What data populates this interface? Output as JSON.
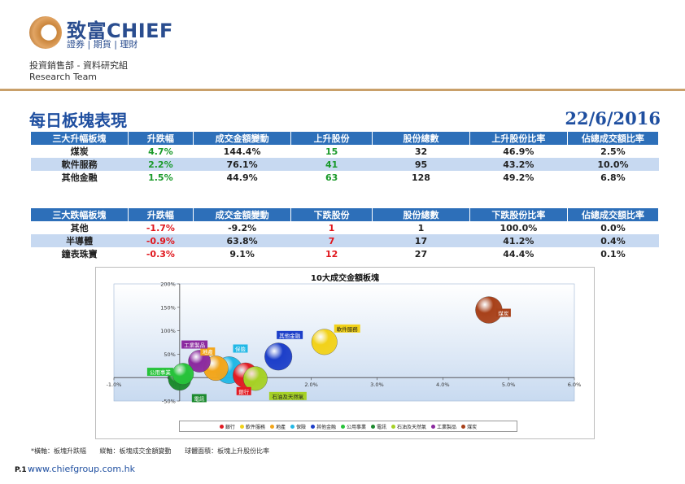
{
  "header": {
    "logo_name": "致富CHIEF",
    "logo_tagline": "證券 | 期貨 | 理財",
    "dept_line1": "投資銷售部 - 資料研究組",
    "dept_line2": "Research Team"
  },
  "title": "每日板塊表現",
  "date": "22/6/2016",
  "gainers": {
    "headers": [
      "三大升幅板塊",
      "升跌幅",
      "成交金額變動",
      "上升股份",
      "股份總數",
      "上升股份比率",
      "佔總成交額比率"
    ],
    "rows": [
      [
        "煤炭",
        "4.7%",
        "144.4%",
        "15",
        "32",
        "46.9%",
        "2.5%"
      ],
      [
        "軟件服務",
        "2.2%",
        "76.1%",
        "41",
        "95",
        "43.2%",
        "10.0%"
      ],
      [
        "其他金融",
        "1.5%",
        "44.9%",
        "63",
        "128",
        "49.2%",
        "6.8%"
      ]
    ]
  },
  "losers": {
    "headers": [
      "三大跌幅板塊",
      "升跌幅",
      "成交金額變動",
      "下跌股份",
      "股份總數",
      "下跌股份比率",
      "佔總成交額比率"
    ],
    "rows": [
      [
        "其他",
        "-1.7%",
        "-9.2%",
        "1",
        "1",
        "100.0%",
        "0.0%"
      ],
      [
        "半導體",
        "-0.9%",
        "63.8%",
        "7",
        "17",
        "41.2%",
        "0.4%"
      ],
      [
        "鐘表珠寶",
        "-0.3%",
        "9.1%",
        "12",
        "27",
        "44.4%",
        "0.1%"
      ]
    ]
  },
  "colors": {
    "header_blue": "#2d6fb9",
    "row_alt": "#c7d9f1",
    "up_green": "#1a9a2a",
    "down_red": "#e0161c",
    "accent_rule": "#c9a06a"
  },
  "chart_data": {
    "type": "bubble",
    "title": "10大成交金額板塊",
    "xlim": [
      -1.0,
      6.0
    ],
    "ylim": [
      -50,
      200
    ],
    "x_ticks": [
      "-1.0%",
      "0.0%",
      "1.0%",
      "2.0%",
      "3.0%",
      "4.0%",
      "5.0%",
      "6.0%"
    ],
    "x_tick_values": [
      -1,
      0,
      1,
      2,
      3,
      4,
      5,
      6
    ],
    "y_ticks": [
      "-50%",
      "0%",
      "50%",
      "100%",
      "150%",
      "200%"
    ],
    "y_tick_values": [
      -50,
      0,
      50,
      100,
      150,
      200
    ],
    "grid": false,
    "legend_position": "bottom",
    "series": [
      {
        "name": "銀行",
        "x": 1.0,
        "y": 5,
        "size": 41,
        "color": "#e31b23",
        "label_color": "#e31b23"
      },
      {
        "name": "軟件服務",
        "x": 2.2,
        "y": 76.1,
        "size": 43.2,
        "color": "#f2d21a",
        "label_color": "#f2d21a"
      },
      {
        "name": "地產",
        "x": 0.55,
        "y": 20,
        "size": 40,
        "color": "#f3a61b",
        "label_color": "#f3a61b"
      },
      {
        "name": "保險",
        "x": 0.75,
        "y": 16,
        "size": 48,
        "color": "#22b8e6",
        "label_color": "#22b8e6"
      },
      {
        "name": "其他金融",
        "x": 1.5,
        "y": 44.9,
        "size": 49.2,
        "color": "#1d3fc9",
        "label_color": "#1d3fc9"
      },
      {
        "name": "公用事業",
        "x": 0.05,
        "y": 8,
        "size": 30,
        "color": "#27c33a",
        "label_color": "#27c33a"
      },
      {
        "name": "電訊",
        "x": 0.0,
        "y": -3,
        "size": 34,
        "color": "#1c8a2e",
        "label_color": "#1c8a2e"
      },
      {
        "name": "石油及天然氣",
        "x": 1.15,
        "y": -2,
        "size": 38,
        "color": "#a6d126",
        "label_color": "#a6d126"
      },
      {
        "name": "工業製品",
        "x": 0.3,
        "y": 35,
        "size": 32,
        "color": "#8b2a9f",
        "label_color": "#8b2a9f"
      },
      {
        "name": "煤炭",
        "x": 4.7,
        "y": 144.4,
        "size": 46.9,
        "color": "#a8411a",
        "label_color": "#a8411a"
      }
    ]
  },
  "footnote": {
    "x_axis": "*橫軸：板塊升跌幅",
    "y_axis": "縱軸：板塊成交金額變動",
    "bubble": "球體面積：板塊上升股份比率"
  },
  "page": "P.1",
  "website": "www.chiefgroup.com.hk"
}
